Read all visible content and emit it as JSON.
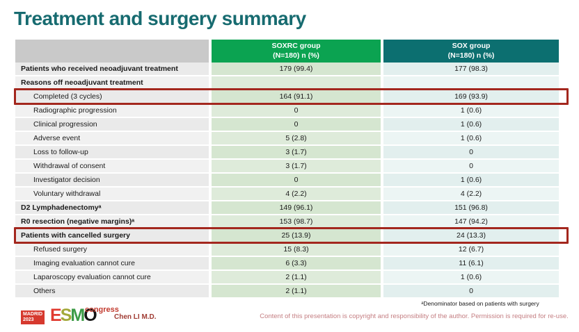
{
  "slide": {
    "title": "Treatment and surgery summary",
    "footnote": "ᵃDenominator based on patients with surgery",
    "copyright": "Content of this presentation is copyright and responsibility of the author. Permission is required for re-use.",
    "presenter": "Chen LI M.D."
  },
  "logo": {
    "city": "MADRID",
    "year": "2023",
    "letter_e": "E",
    "letter_s": "S",
    "letter_m": "M",
    "letter_o": "O",
    "congress": "congress"
  },
  "colors": {
    "title_teal": "#176B70",
    "soxrc_header_green": "#0BA351",
    "sox_header_teal": "#0C6F70",
    "highlight_red": "#A3271E"
  },
  "table": {
    "columns": [
      {
        "name": "",
        "subline": ""
      },
      {
        "name": "SOXRC group",
        "subline": "(N=180) n (%)"
      },
      {
        "name": "SOX group",
        "subline": "(N=180) n (%)"
      }
    ],
    "rows": [
      {
        "label": "Patients who received neoadjuvant treatment",
        "soxrc": "179 (99.4)",
        "sox": "177 (98.3)",
        "bold": true
      },
      {
        "label": "Reasons off neoadjuvant treatment",
        "soxrc": "",
        "sox": "",
        "bold": true
      },
      {
        "label": "Completed (3 cycles)",
        "soxrc": "164 (91.1)",
        "sox": "169 (93.9)",
        "indent": true,
        "highlight": true
      },
      {
        "label": "Radiographic progression",
        "soxrc": "0",
        "sox": "1 (0.6)",
        "indent": true
      },
      {
        "label": "Clinical progression",
        "soxrc": "0",
        "sox": "1 (0.6)",
        "indent": true
      },
      {
        "label": "Adverse event",
        "soxrc": "5 (2.8)",
        "sox": "1 (0.6)",
        "indent": true
      },
      {
        "label": "Loss to follow-up",
        "soxrc": "3 (1.7)",
        "sox": "0",
        "indent": true
      },
      {
        "label": "Withdrawal of consent",
        "soxrc": "3 (1.7)",
        "sox": "0",
        "indent": true
      },
      {
        "label": "Investigator decision",
        "soxrc": "0",
        "sox": "1 (0.6)",
        "indent": true
      },
      {
        "label": "Voluntary withdrawal",
        "soxrc": "4 (2.2)",
        "sox": "4 (2.2)",
        "indent": true
      },
      {
        "label": "D2 Lymphadenectomyᵃ",
        "soxrc": "149 (96.1)",
        "sox": "151 (96.8)",
        "bold": true
      },
      {
        "label": "R0 resection (negative margins)ᵃ",
        "soxrc": "153 (98.7)",
        "sox": "147 (94.2)",
        "bold": true
      },
      {
        "label": "Patients with cancelled surgery",
        "soxrc": "25 (13.9)",
        "sox": "24 (13.3)",
        "bold": true,
        "highlight": true
      },
      {
        "label": "Refused surgery",
        "soxrc": "15 (8.3)",
        "sox": "12 (6.7)",
        "indent": true
      },
      {
        "label": "Imaging evaluation cannot cure",
        "soxrc": "6 (3.3)",
        "sox": "11 (6.1)",
        "indent": true
      },
      {
        "label": "Laparoscopy evaluation cannot cure",
        "soxrc": "2 (1.1)",
        "sox": "1 (0.6)",
        "indent": true
      },
      {
        "label": "Others",
        "soxrc": "2 (1.1)",
        "sox": "0",
        "indent": true
      }
    ]
  }
}
